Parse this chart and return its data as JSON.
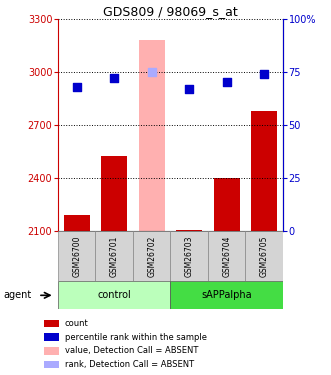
{
  "title": "GDS809 / 98069_s_at",
  "samples": [
    "GSM26700",
    "GSM26701",
    "GSM26702",
    "GSM26703",
    "GSM26704",
    "GSM26705"
  ],
  "bar_values": [
    2190,
    2520,
    3180,
    2105,
    2400,
    2780
  ],
  "bar_colors": [
    "#cc0000",
    "#cc0000",
    "#ffb0b0",
    "#cc0000",
    "#cc0000",
    "#cc0000"
  ],
  "dot_values": [
    68,
    72,
    75,
    67,
    70,
    74
  ],
  "dot_colors": [
    "#0000cc",
    "#0000cc",
    "#aaaaff",
    "#0000cc",
    "#0000cc",
    "#0000cc"
  ],
  "ylim_left": [
    2100,
    3300
  ],
  "ylim_right": [
    0,
    100
  ],
  "yticks_left": [
    2100,
    2400,
    2700,
    3000,
    3300
  ],
  "yticks_right": [
    0,
    25,
    50,
    75,
    100
  ],
  "ytick_labels_right": [
    "0",
    "25",
    "50",
    "75",
    "100%"
  ],
  "groups": [
    {
      "label": "control",
      "indices": [
        0,
        1,
        2
      ],
      "color": "#bbffbb"
    },
    {
      "label": "sAPPalpha",
      "indices": [
        3,
        4,
        5
      ],
      "color": "#44dd44"
    }
  ],
  "legend_items": [
    {
      "label": "count",
      "color": "#cc0000"
    },
    {
      "label": "percentile rank within the sample",
      "color": "#0000cc"
    },
    {
      "label": "value, Detection Call = ABSENT",
      "color": "#ffb0b0"
    },
    {
      "label": "rank, Detection Call = ABSENT",
      "color": "#aaaaff"
    }
  ],
  "bar_width": 0.7,
  "dot_size": 30,
  "left_axis_color": "#cc0000",
  "right_axis_color": "#0000cc"
}
